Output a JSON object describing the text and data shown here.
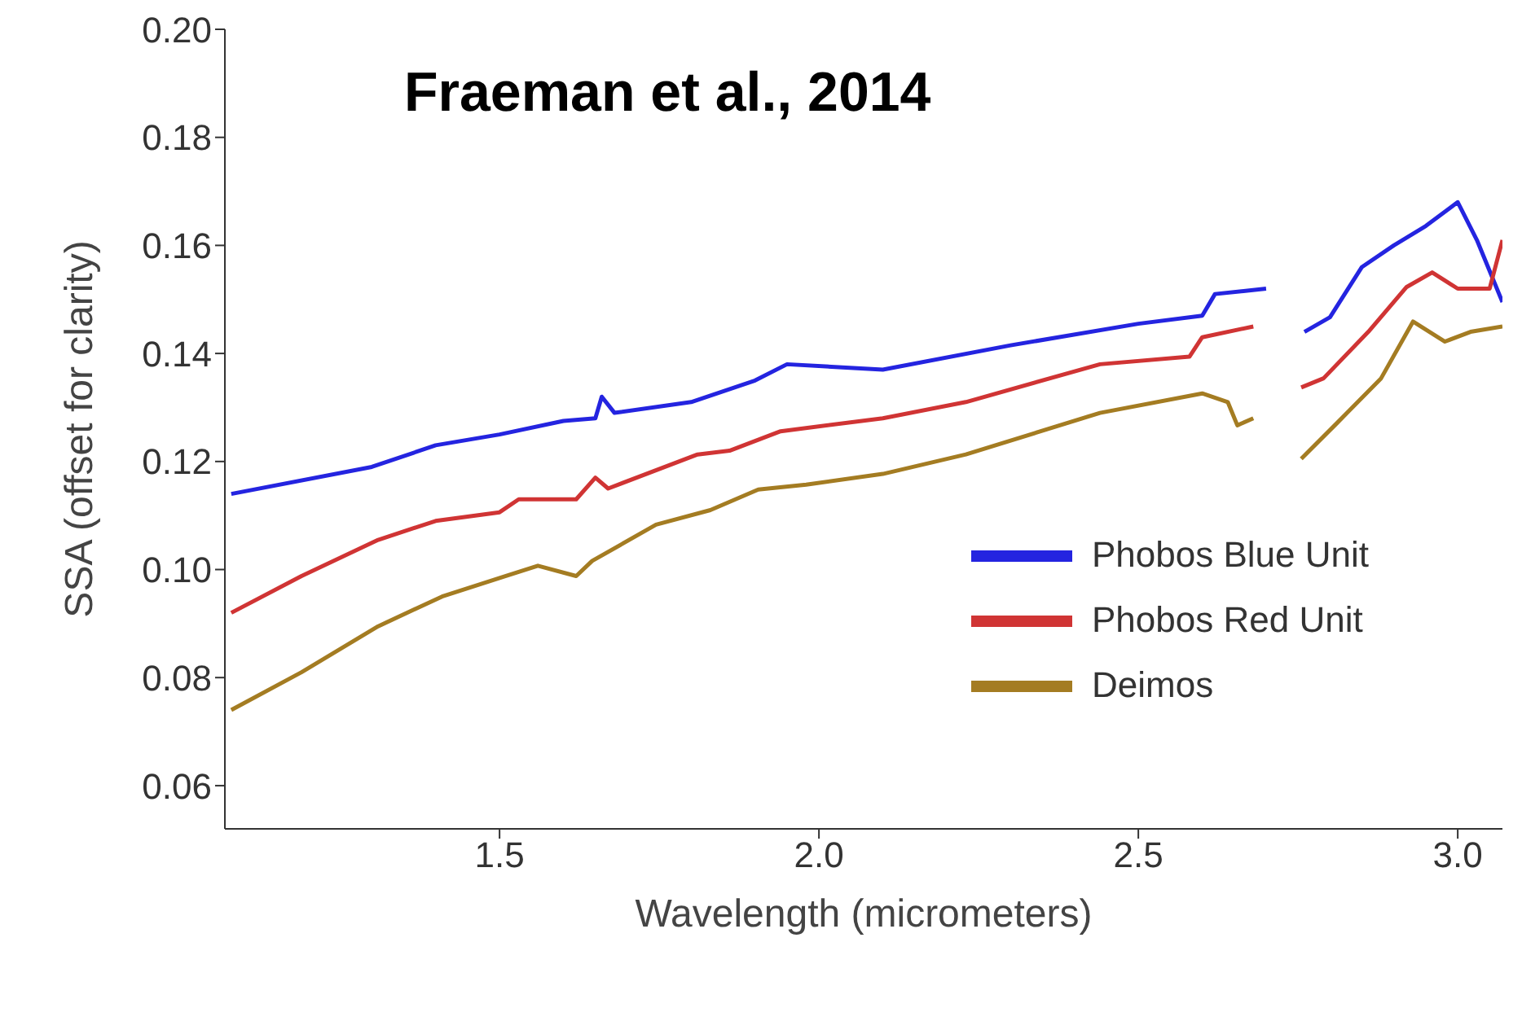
{
  "chart_data": {
    "type": "line",
    "xlabel": "Wavelength (micrometers)",
    "ylabel": "SSA (offset for clarity)",
    "annotations": [
      "Fraeman et al., 2014"
    ],
    "xlim": [
      1.07,
      3.07
    ],
    "xticks": [
      {
        "value": 1.5,
        "label": "1.5"
      },
      {
        "value": 2,
        "label": "2.0"
      },
      {
        "value": 2.5,
        "label": "2.5"
      },
      {
        "value": 3,
        "label": "3.0"
      }
    ],
    "ylim": [
      0.052,
      0.2
    ],
    "yticks": [
      {
        "value": 0.06,
        "label": "0.06"
      },
      {
        "value": 0.08,
        "label": "0.08"
      },
      {
        "value": 0.1,
        "label": "0.10"
      },
      {
        "value": 0.12,
        "label": "0.12"
      },
      {
        "value": 0.14,
        "label": "0.14"
      },
      {
        "value": 0.16,
        "label": "0.16"
      },
      {
        "value": 0.18,
        "label": "0.18"
      },
      {
        "value": 0.2,
        "label": "0.20"
      }
    ],
    "grid": false,
    "legend": "right",
    "marker": "none",
    "line_style": "solid",
    "series": [
      {
        "name": "Phobos Blue Unit",
        "color": "#2424e0",
        "x": [
          1.08,
          1.3,
          1.4,
          1.5,
          1.6,
          1.65,
          1.66,
          1.68,
          1.8,
          1.9,
          1.95,
          2.1,
          2.3,
          2.5,
          2.6,
          2.62,
          2.7,
          2.73,
          2.76,
          2.8,
          2.85,
          2.9,
          2.95,
          3.0,
          3.03,
          3.07
        ],
        "values": [
          0.114,
          0.119,
          0.123,
          0.125,
          0.1275,
          0.128,
          0.132,
          0.129,
          0.131,
          0.135,
          0.138,
          0.137,
          0.1415,
          0.1455,
          0.147,
          0.151,
          0.152,
          null,
          0.144,
          0.1467,
          0.156,
          0.16,
          0.1636,
          0.168,
          0.161,
          0.1495
        ]
      },
      {
        "name": "Phobos Red Unit",
        "color": "#d03434",
        "x": [
          1.08,
          1.19,
          1.31,
          1.4,
          1.5,
          1.53,
          1.62,
          1.65,
          1.67,
          1.81,
          1.86,
          1.94,
          2.1,
          2.23,
          2.44,
          2.58,
          2.6,
          2.68,
          2.72,
          2.755,
          2.79,
          2.86,
          2.92,
          2.96,
          3.0,
          3.05,
          3.07
        ],
        "values": [
          0.092,
          0.0988,
          0.1055,
          0.109,
          0.1106,
          0.113,
          0.113,
          0.117,
          0.115,
          0.1213,
          0.122,
          0.1256,
          0.128,
          0.131,
          0.138,
          0.1394,
          0.143,
          0.145,
          null,
          0.1337,
          0.1354,
          0.144,
          0.1523,
          0.155,
          0.152,
          0.152,
          0.161
        ]
      },
      {
        "name": "Deimos",
        "color": "#a47c22",
        "x": [
          1.08,
          1.19,
          1.31,
          1.41,
          1.51,
          1.56,
          1.62,
          1.645,
          1.745,
          1.83,
          1.905,
          1.98,
          2.1,
          2.23,
          2.44,
          2.6,
          2.64,
          2.655,
          2.68,
          2.72,
          2.755,
          2.81,
          2.88,
          2.93,
          2.98,
          3.02,
          3.07
        ],
        "values": [
          0.074,
          0.081,
          0.0895,
          0.095,
          0.0988,
          0.1007,
          0.0988,
          0.1016,
          0.1083,
          0.111,
          0.1148,
          0.1157,
          0.1177,
          0.1213,
          0.129,
          0.1326,
          0.131,
          0.1267,
          0.128,
          null,
          0.1205,
          0.127,
          0.1354,
          0.1459,
          0.1422,
          0.144,
          0.145
        ]
      }
    ]
  }
}
